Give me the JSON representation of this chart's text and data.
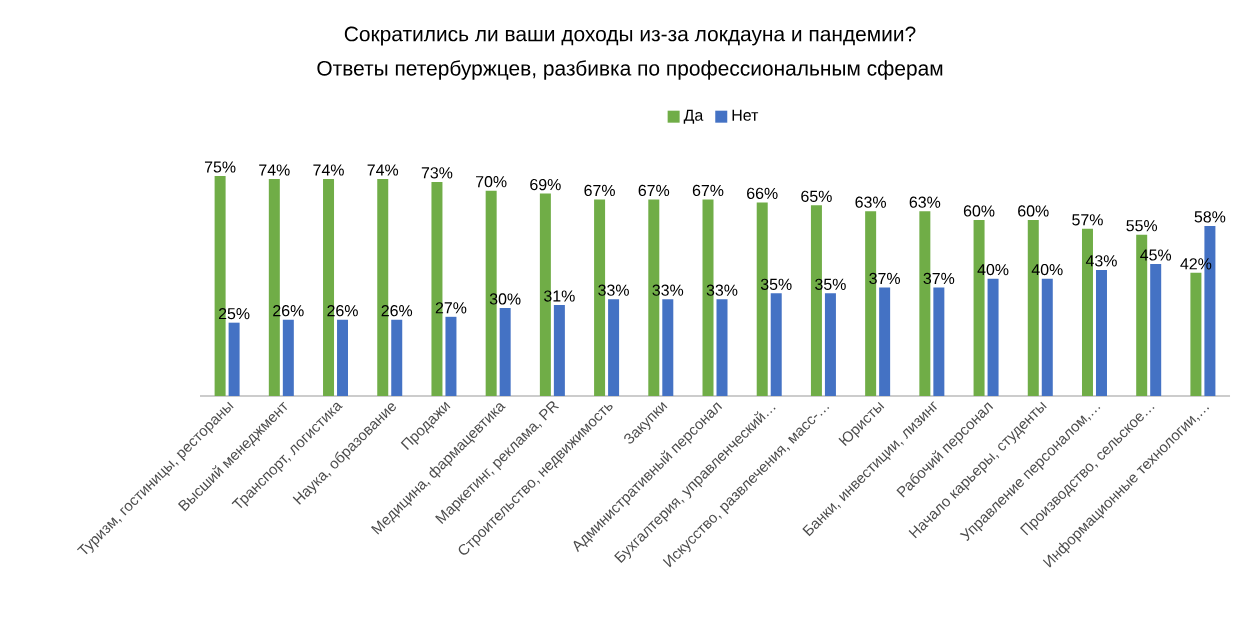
{
  "chart_data": {
    "type": "bar",
    "title": "Сократились ли ваши доходы из-за локдауна и пандемии?",
    "subtitle": "Ответы петербуржцев, разбивка по профессиональным сферам",
    "categories": [
      "Туризм, гостиницы, рестораны",
      "Высший менеджмент",
      "Транспорт, логистика",
      "Наука, образование",
      "Продажи",
      "Медицина, фармацевтика",
      "Маркетинг, реклама, PR",
      "Строительство, недвижимость",
      "Закупки",
      "Административный персонал",
      "Бухгалтерия, управленческий…",
      "Искусство, развлечения, масс-…",
      "Юристы",
      "Банки, инвестиции, лизинг",
      "Рабочий персонал",
      "Начало карьеры, студенты",
      "Управление персоналом,…",
      "Производство, сельское…",
      "Информационные технологии,…"
    ],
    "series": [
      {
        "name": "Да",
        "color": "#70ad47",
        "values": [
          75,
          74,
          74,
          74,
          73,
          70,
          69,
          67,
          67,
          67,
          66,
          65,
          63,
          63,
          60,
          60,
          57,
          55,
          42
        ],
        "value_labels": [
          "75%",
          "74%",
          "74%",
          "74%",
          "73%",
          "70%",
          "69%",
          "67%",
          "67%",
          "67%",
          "66%",
          "65%",
          "63%",
          "63%",
          "60%",
          "60%",
          "57%",
          "55%",
          "42%"
        ]
      },
      {
        "name": "Нет",
        "color": "#4472c4",
        "values": [
          25,
          26,
          26,
          26,
          27,
          30,
          31,
          33,
          33,
          33,
          35,
          35,
          37,
          37,
          40,
          40,
          43,
          45,
          58
        ],
        "value_labels": [
          "25%",
          "26%",
          "26%",
          "26%",
          "27%",
          "30%",
          "31%",
          "33%",
          "33%",
          "33%",
          "35%",
          "35%",
          "37%",
          "37%",
          "40%",
          "40%",
          "43%",
          "45%",
          "58%"
        ]
      }
    ],
    "legend": "top"
  }
}
